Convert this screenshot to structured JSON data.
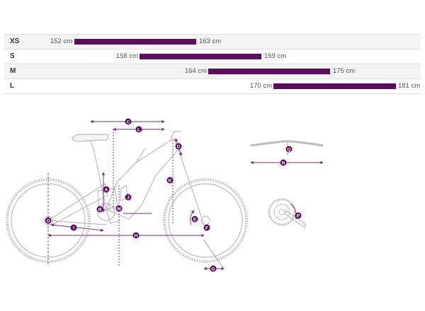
{
  "size_chart": {
    "unit": "cm",
    "rows": [
      {
        "size": "XS",
        "min": "152 cm",
        "max": "163 cm",
        "min_value": 152,
        "max_value": 163
      },
      {
        "size": "S",
        "min": "158 cm",
        "max": "169 cm",
        "min_value": 158,
        "max_value": 169
      },
      {
        "size": "M",
        "min": "164 cm",
        "max": "175 cm",
        "min_value": 164,
        "max_value": 175
      },
      {
        "size": "L",
        "min": "170 cm",
        "max": "181 cm",
        "min_value": 170,
        "max_value": 181
      }
    ],
    "bar_color": "#5c0b5e"
  },
  "geometry": {
    "marker_color": "#5c0b5e",
    "line_color": "#7a2a7c",
    "markers": [
      "A",
      "B",
      "C",
      "D",
      "E",
      "F",
      "G",
      "H",
      "I",
      "J",
      "K",
      "L",
      "M",
      "N",
      "O",
      "P",
      "Q"
    ]
  }
}
